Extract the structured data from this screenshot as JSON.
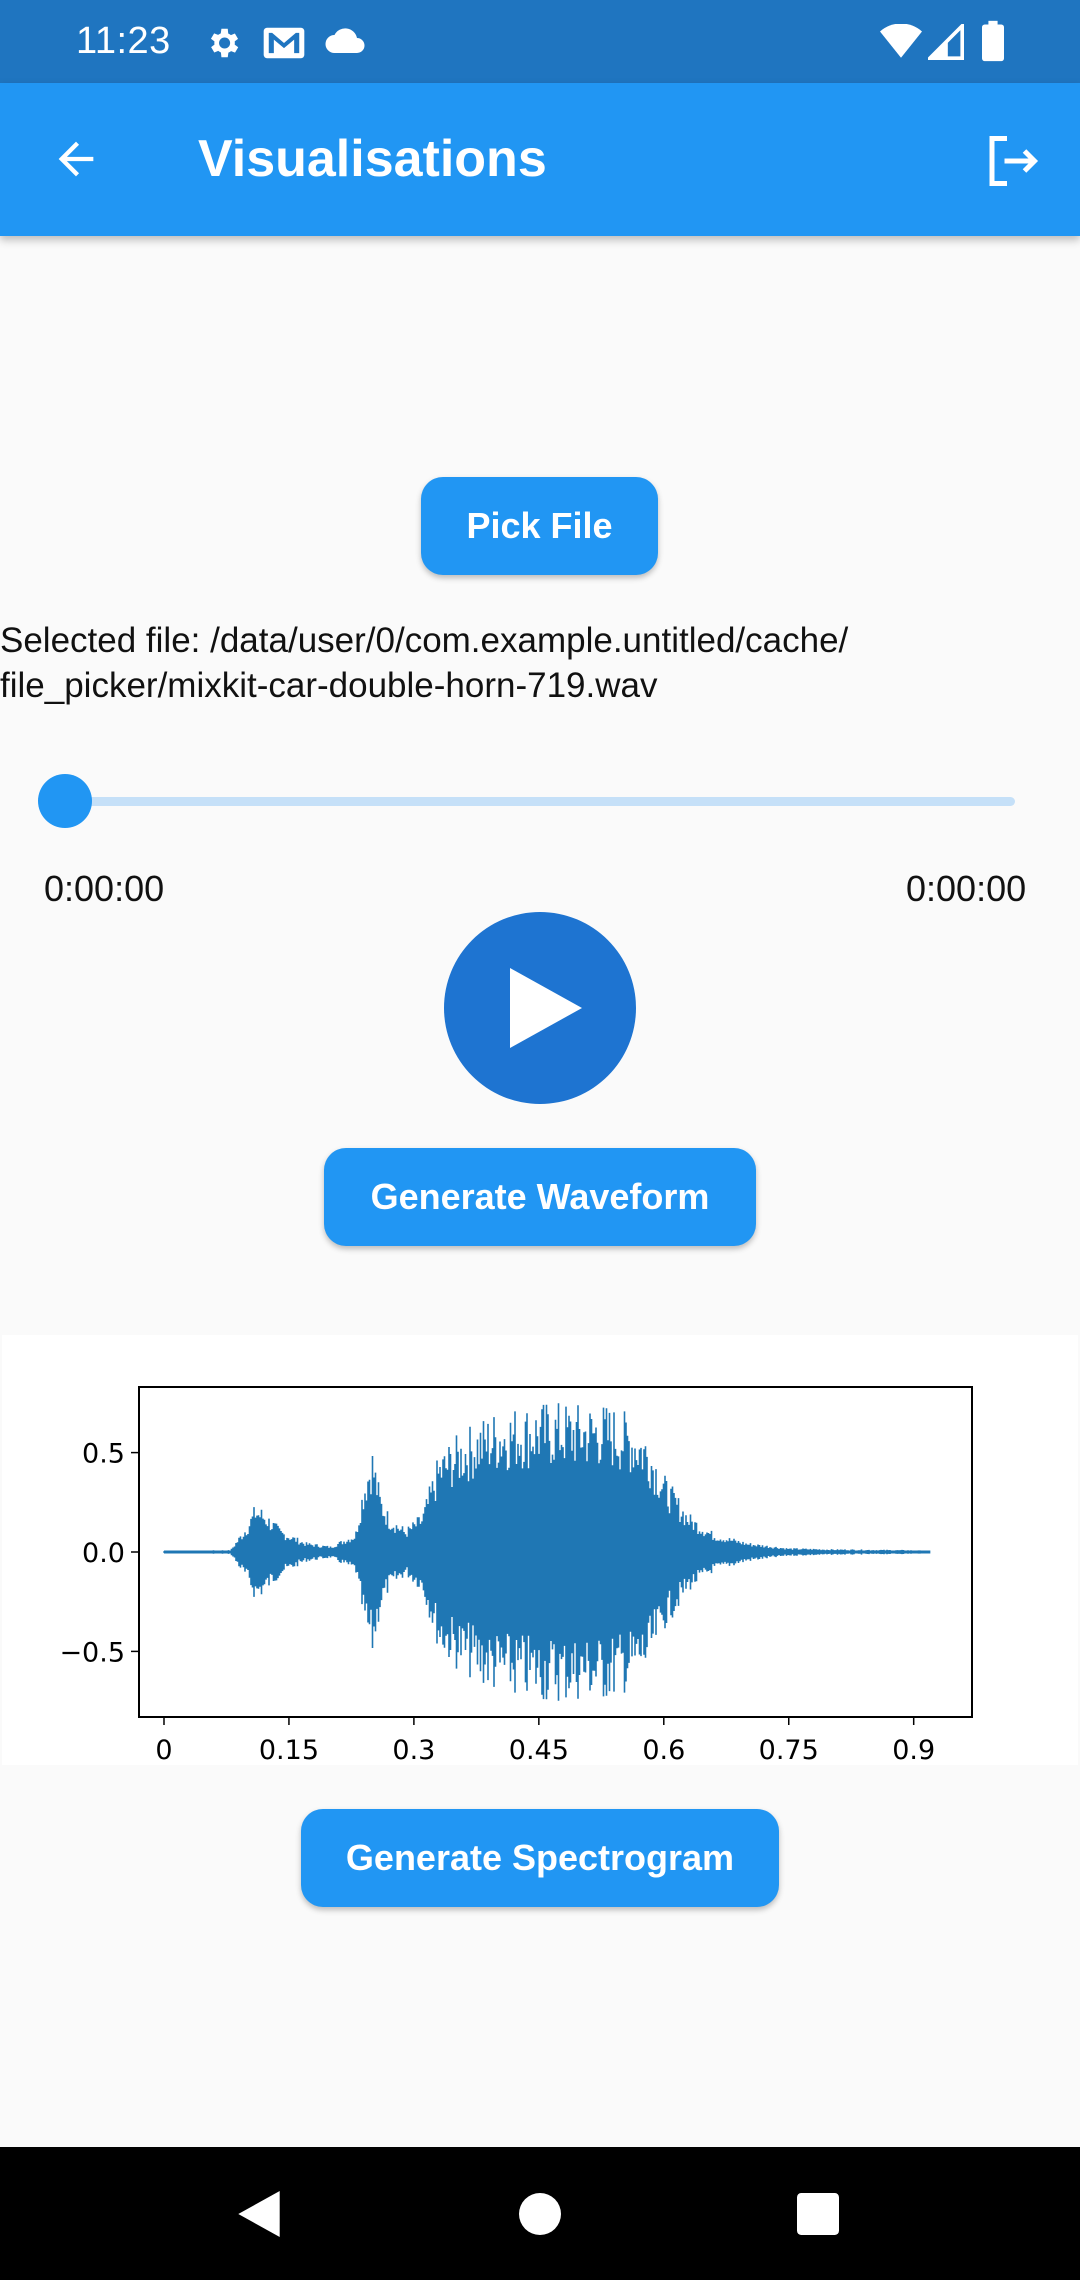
{
  "status_bar": {
    "time": "11:23",
    "icons_left": [
      "gear-icon",
      "gmail-icon",
      "cloud-icon"
    ],
    "icons_right": [
      "wifi-icon",
      "signal-icon",
      "battery-icon"
    ]
  },
  "app_bar": {
    "title": "Visualisations",
    "back_icon": "arrow-back-icon",
    "logout_icon": "logout-icon",
    "color": "#2196f3"
  },
  "pick_file": {
    "label": "Pick File"
  },
  "selected_file": {
    "text": "Selected file: /data/user/0/com.example.untitled/cache/\nfile_picker/mixkit-car-double-horn-719.wav"
  },
  "player": {
    "position": "0:00:00",
    "duration": "0:00:00",
    "progress": 0,
    "play_icon": "play-icon"
  },
  "generate_waveform": {
    "label": "Generate Waveform"
  },
  "generate_spectrogram": {
    "label": "Generate Spectrogram"
  },
  "chart_data": {
    "type": "line",
    "title": "",
    "xlabel": "",
    "ylabel": "",
    "xlim": [
      -0.03,
      0.97
    ],
    "ylim": [
      -0.83,
      0.83
    ],
    "x_ticks": [
      0,
      0.15,
      0.3,
      0.45,
      0.6,
      0.75,
      0.9
    ],
    "x_tick_labels": [
      "0",
      "0.15",
      "0.3",
      "0.45",
      "0.6",
      "0.75",
      "0.9"
    ],
    "y_ticks": [
      0.5,
      0.0,
      -0.5
    ],
    "y_tick_labels": [
      "0.5",
      "0.0",
      "−0.5"
    ],
    "color": "#1f77b4",
    "series": [
      {
        "x": [
          0,
          0.08,
          0.1,
          0.11,
          0.12,
          0.14,
          0.17,
          0.2,
          0.23,
          0.24,
          0.25,
          0.26,
          0.27,
          0.29,
          0.31,
          0.33,
          0.34,
          0.36,
          0.38,
          0.4,
          0.42,
          0.44,
          0.46,
          0.48,
          0.5,
          0.52,
          0.54,
          0.56,
          0.58,
          0.6,
          0.63,
          0.66,
          0.7,
          0.75,
          0.8,
          0.9,
          0.92
        ],
        "amplitude": [
          0.005,
          0.01,
          0.15,
          0.25,
          0.22,
          0.12,
          0.05,
          0.03,
          0.1,
          0.38,
          0.55,
          0.3,
          0.2,
          0.12,
          0.2,
          0.5,
          0.55,
          0.62,
          0.68,
          0.72,
          0.74,
          0.75,
          0.76,
          0.76,
          0.75,
          0.76,
          0.74,
          0.7,
          0.62,
          0.4,
          0.2,
          0.1,
          0.05,
          0.02,
          0.015,
          0.01,
          0.005
        ]
      }
    ]
  }
}
